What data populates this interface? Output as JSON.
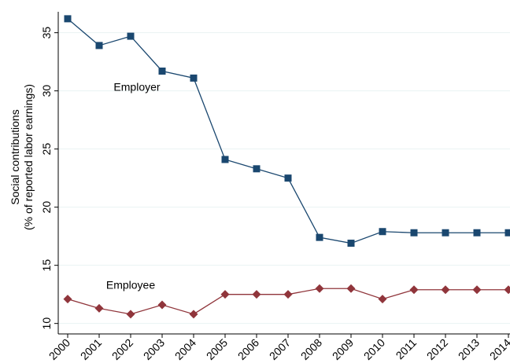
{
  "chart_data": {
    "type": "line",
    "ylabel": [
      "Social contributions",
      "(% of reported labor earnings)"
    ],
    "x": [
      2000,
      2001,
      2002,
      2003,
      2004,
      2005,
      2006,
      2007,
      2008,
      2009,
      2010,
      2011,
      2012,
      2013,
      2014
    ],
    "xlim": [
      1999.7,
      2014.05
    ],
    "xticks": [
      2000,
      2001,
      2002,
      2003,
      2004,
      2005,
      2006,
      2007,
      2008,
      2009,
      2010,
      2011,
      2012,
      2013,
      2014
    ],
    "ylim": [
      9.1,
      36.8
    ],
    "yticks": [
      10,
      15,
      20,
      25,
      30,
      35
    ],
    "grid": true,
    "series": [
      {
        "name": "Employer",
        "color": "#1a476f",
        "marker": "square",
        "values": [
          36.2,
          33.9,
          34.7,
          31.7,
          31.1,
          24.1,
          23.3,
          22.5,
          17.4,
          16.9,
          17.9,
          17.8,
          17.8,
          17.8,
          17.8
        ]
      },
      {
        "name": "Employee",
        "color": "#90353b",
        "marker": "diamond",
        "values": [
          12.1,
          11.3,
          10.8,
          11.6,
          10.8,
          12.5,
          12.5,
          12.5,
          13.0,
          13.0,
          12.1,
          12.9,
          12.9,
          12.9,
          12.9
        ]
      }
    ]
  }
}
